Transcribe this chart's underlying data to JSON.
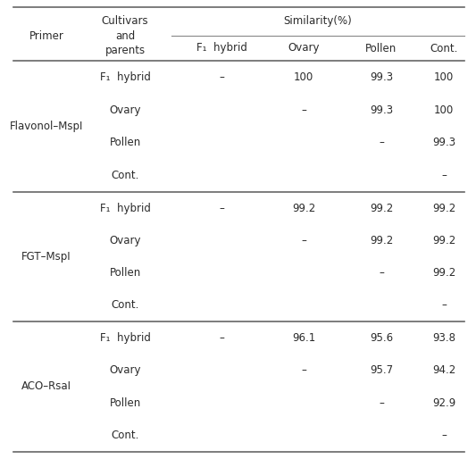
{
  "col_headers_row1": [
    "Primer",
    "Cultivars\nand\nparents",
    "Similarity(%)"
  ],
  "col_headers_row2": [
    "F₁  hybrid",
    "Ovary",
    "Pollen",
    "Cont."
  ],
  "rows": [
    {
      "primer": "Flavonol–MspI",
      "cultivars": [
        "F₁  hybrid",
        "Ovary",
        "Pollen",
        "Cont."
      ],
      "f1_hybrid": [
        "–",
        "",
        "",
        ""
      ],
      "ovary": [
        "100",
        "–",
        "",
        ""
      ],
      "pollen": [
        "99.3",
        "99.3",
        "–",
        ""
      ],
      "cont": [
        "100",
        "100",
        "99.3",
        "–"
      ]
    },
    {
      "primer": "FGT–MspI",
      "cultivars": [
        "F₁  hybrid",
        "Ovary",
        "Pollen",
        "Cont."
      ],
      "f1_hybrid": [
        "–",
        "",
        "",
        ""
      ],
      "ovary": [
        "99.2",
        "–",
        "",
        ""
      ],
      "pollen": [
        "99.2",
        "99.2",
        "–",
        ""
      ],
      "cont": [
        "99.2",
        "99.2",
        "99.2",
        "–"
      ]
    },
    {
      "primer": "ACO–RsaI",
      "cultivars": [
        "F₁  hybrid",
        "Ovary",
        "Pollen",
        "Cont."
      ],
      "f1_hybrid": [
        "–",
        "",
        "",
        ""
      ],
      "ovary": [
        "96.1",
        "–",
        "",
        ""
      ],
      "pollen": [
        "95.6",
        "95.7",
        "–",
        ""
      ],
      "cont": [
        "93.8",
        "94.2",
        "92.9",
        "–"
      ]
    }
  ],
  "font_size": 8.5,
  "bg_color": "#ffffff",
  "text_color": "#2b2b2b",
  "thick_line_color": "#666666",
  "thin_line_color": "#888888"
}
